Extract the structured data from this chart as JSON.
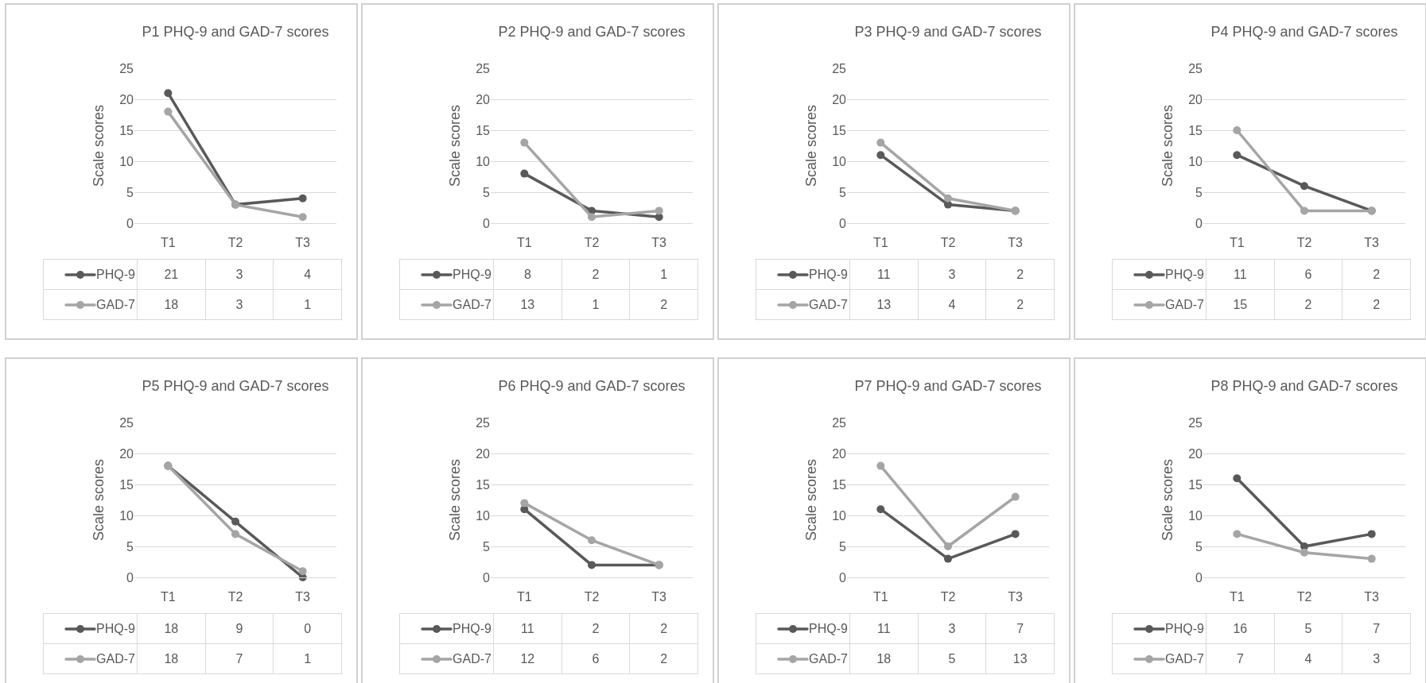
{
  "chart_data": [
    {
      "type": "line",
      "title": "P1 PHQ-9 and GAD-7 scores",
      "ylabel": "Scale scores",
      "categories": [
        "T1",
        "T2",
        "T3"
      ],
      "ylim": [
        0,
        25
      ],
      "yticks": [
        0,
        5,
        10,
        15,
        20,
        25
      ],
      "grid": "y",
      "legend": "bottom",
      "marker": "circle",
      "line_style": "solid",
      "data_labels": true,
      "series": [
        {
          "name": "PHQ-9",
          "color": "#595959",
          "values": [
            21,
            3,
            4
          ]
        },
        {
          "name": "GAD-7",
          "color": "#a5a5a5",
          "values": [
            18,
            3,
            1
          ]
        }
      ]
    },
    {
      "type": "line",
      "title": "P2 PHQ-9 and GAD-7 scores",
      "ylabel": "Scale scores",
      "categories": [
        "T1",
        "T2",
        "T3"
      ],
      "ylim": [
        0,
        25
      ],
      "yticks": [
        0,
        5,
        10,
        15,
        20,
        25
      ],
      "grid": "y",
      "legend": "bottom",
      "marker": "circle",
      "line_style": "solid",
      "data_labels": true,
      "series": [
        {
          "name": "PHQ-9",
          "color": "#595959",
          "values": [
            8,
            2,
            1
          ]
        },
        {
          "name": "GAD-7",
          "color": "#a5a5a5",
          "values": [
            13,
            1,
            2
          ]
        }
      ]
    },
    {
      "type": "line",
      "title": "P3 PHQ-9 and GAD-7 scores",
      "ylabel": "Scale scores",
      "categories": [
        "T1",
        "T2",
        "T3"
      ],
      "ylim": [
        0,
        25
      ],
      "yticks": [
        0,
        5,
        10,
        15,
        20,
        25
      ],
      "grid": "y",
      "legend": "bottom",
      "marker": "circle",
      "line_style": "solid",
      "data_labels": true,
      "series": [
        {
          "name": "PHQ-9",
          "color": "#595959",
          "values": [
            11,
            3,
            2
          ]
        },
        {
          "name": "GAD-7",
          "color": "#a5a5a5",
          "values": [
            13,
            4,
            2
          ]
        }
      ]
    },
    {
      "type": "line",
      "title": "P4 PHQ-9 and GAD-7 scores",
      "ylabel": "Scale scores",
      "categories": [
        "T1",
        "T2",
        "T3"
      ],
      "ylim": [
        0,
        25
      ],
      "yticks": [
        0,
        5,
        10,
        15,
        20,
        25
      ],
      "grid": "y",
      "legend": "bottom",
      "marker": "circle",
      "line_style": "solid",
      "data_labels": true,
      "series": [
        {
          "name": "PHQ-9",
          "color": "#595959",
          "values": [
            11,
            6,
            2
          ]
        },
        {
          "name": "GAD-7",
          "color": "#a5a5a5",
          "values": [
            15,
            2,
            2
          ]
        }
      ]
    },
    {
      "type": "line",
      "title": "P5 PHQ-9 and GAD-7 scores",
      "ylabel": "Scale scores",
      "categories": [
        "T1",
        "T2",
        "T3"
      ],
      "ylim": [
        0,
        25
      ],
      "yticks": [
        0,
        5,
        10,
        15,
        20,
        25
      ],
      "grid": "y",
      "legend": "bottom",
      "marker": "circle",
      "line_style": "solid",
      "data_labels": true,
      "series": [
        {
          "name": "PHQ-9",
          "color": "#595959",
          "values": [
            18,
            9,
            0
          ]
        },
        {
          "name": "GAD-7",
          "color": "#a5a5a5",
          "values": [
            18,
            7,
            1
          ]
        }
      ]
    },
    {
      "type": "line",
      "title": "P6 PHQ-9 and GAD-7 scores",
      "ylabel": "Scale scores",
      "categories": [
        "T1",
        "T2",
        "T3"
      ],
      "ylim": [
        0,
        25
      ],
      "yticks": [
        0,
        5,
        10,
        15,
        20,
        25
      ],
      "grid": "y",
      "legend": "bottom",
      "marker": "circle",
      "line_style": "solid",
      "data_labels": true,
      "series": [
        {
          "name": "PHQ-9",
          "color": "#595959",
          "values": [
            11,
            2,
            2
          ]
        },
        {
          "name": "GAD-7",
          "color": "#a5a5a5",
          "values": [
            12,
            6,
            2
          ]
        }
      ]
    },
    {
      "type": "line",
      "title": "P7 PHQ-9 and GAD-7 scores",
      "ylabel": "Scale scores",
      "categories": [
        "T1",
        "T2",
        "T3"
      ],
      "ylim": [
        0,
        25
      ],
      "yticks": [
        0,
        5,
        10,
        15,
        20,
        25
      ],
      "grid": "y",
      "legend": "bottom",
      "marker": "circle",
      "line_style": "solid",
      "data_labels": true,
      "series": [
        {
          "name": "PHQ-9",
          "color": "#595959",
          "values": [
            11,
            3,
            7
          ]
        },
        {
          "name": "GAD-7",
          "color": "#a5a5a5",
          "values": [
            18,
            5,
            13
          ]
        }
      ]
    },
    {
      "type": "line",
      "title": "P8 PHQ-9 and GAD-7 scores",
      "ylabel": "Scale scores",
      "categories": [
        "T1",
        "T2",
        "T3"
      ],
      "ylim": [
        0,
        25
      ],
      "yticks": [
        0,
        5,
        10,
        15,
        20,
        25
      ],
      "grid": "y",
      "legend": "bottom",
      "marker": "circle",
      "line_style": "solid",
      "data_labels": true,
      "series": [
        {
          "name": "PHQ-9",
          "color": "#595959",
          "values": [
            16,
            5,
            7
          ]
        },
        {
          "name": "GAD-7",
          "color": "#a5a5a5",
          "values": [
            7,
            4,
            3
          ]
        }
      ]
    }
  ]
}
